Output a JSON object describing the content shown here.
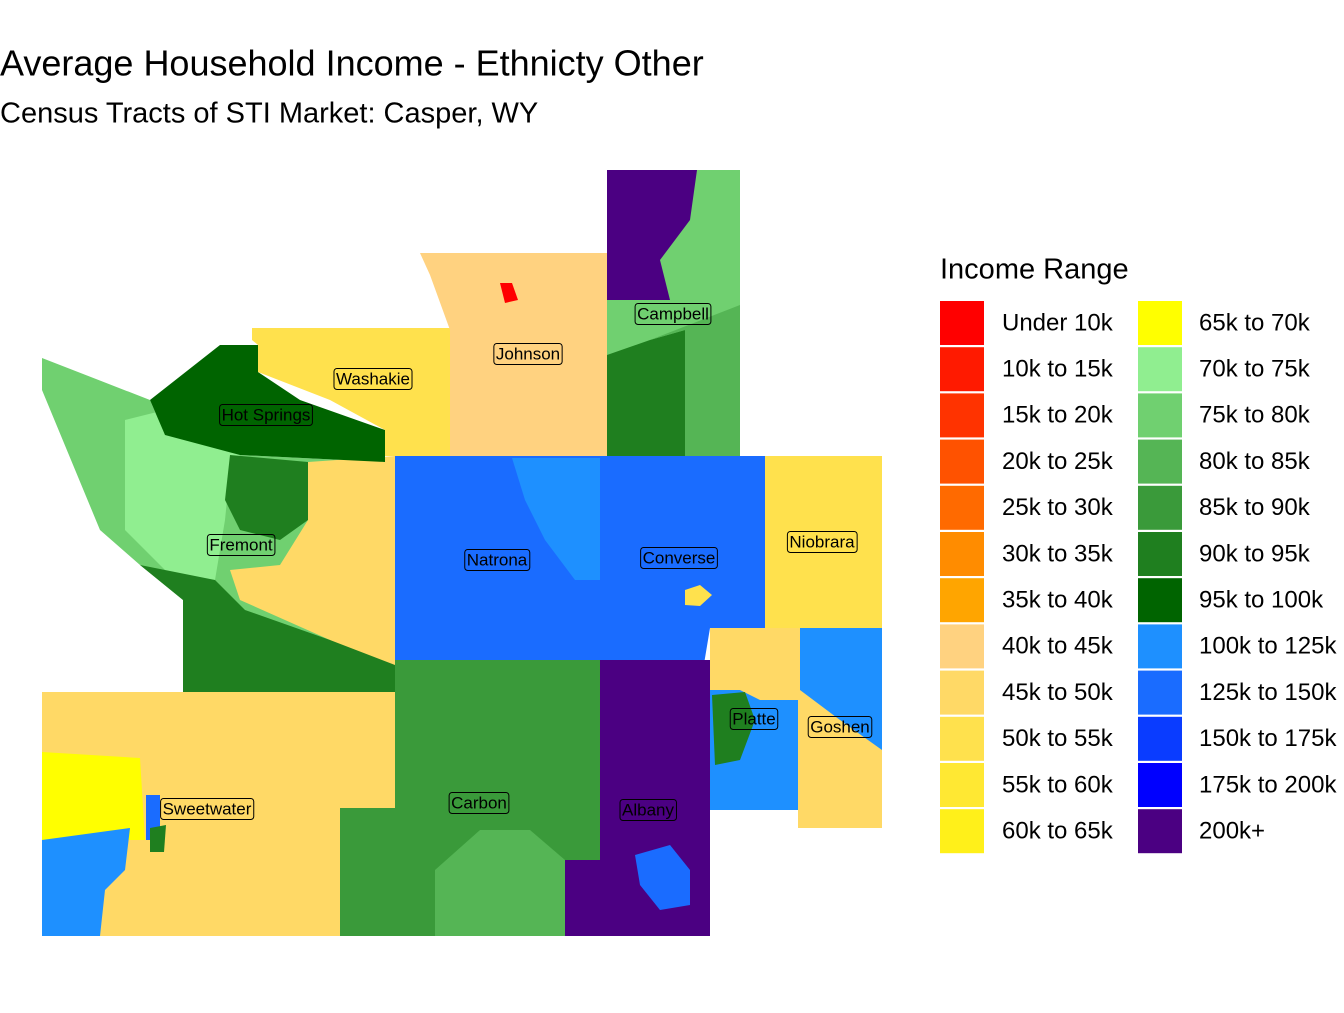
{
  "title": "Average Household Income - Ethnicty Other",
  "subtitle": "Census Tracts of STI Market: Casper, WY",
  "legend": {
    "title": "Income Range",
    "items": [
      {
        "label": "Under 10k",
        "color": "#ff0000"
      },
      {
        "label": "10k to 15k",
        "color": "#ff1a00"
      },
      {
        "label": "15k to 20k",
        "color": "#ff3300"
      },
      {
        "label": "20k to 25k",
        "color": "#ff5200"
      },
      {
        "label": "25k to 30k",
        "color": "#ff6a00"
      },
      {
        "label": "30k to 35k",
        "color": "#ff8c00"
      },
      {
        "label": "35k to 40k",
        "color": "#ffa500"
      },
      {
        "label": "40k to 45k",
        "color": "#ffd280"
      },
      {
        "label": "45k to 50k",
        "color": "#ffd966"
      },
      {
        "label": "50k to 55k",
        "color": "#ffe14d"
      },
      {
        "label": "55k to 60k",
        "color": "#ffe833"
      },
      {
        "label": "60k to 65k",
        "color": "#fff01a"
      },
      {
        "label": "65k to 70k",
        "color": "#ffff00"
      },
      {
        "label": "70k to 75k",
        "color": "#90ee90"
      },
      {
        "label": "75k to 80k",
        "color": "#70d070"
      },
      {
        "label": "80k to 85k",
        "color": "#55b555"
      },
      {
        "label": "85k to 90k",
        "color": "#3a9a3a"
      },
      {
        "label": "90k to 95k",
        "color": "#1f7f1f"
      },
      {
        "label": "95k to 100k",
        "color": "#006400"
      },
      {
        "label": "100k to 125k",
        "color": "#1e90ff"
      },
      {
        "label": "125k to 150k",
        "color": "#1a6cff"
      },
      {
        "label": "150k to 175k",
        "color": "#0a3cff"
      },
      {
        "label": "175k to 200k",
        "color": "#0000ff"
      },
      {
        "label": "200k+",
        "color": "#4b0082"
      }
    ]
  },
  "counties": [
    "Campbell",
    "Johnson",
    "Washakie",
    "Hot Springs",
    "Fremont",
    "Natrona",
    "Converse",
    "Niobrara",
    "Platte",
    "Goshen",
    "Carbon",
    "Albany",
    "Sweetwater"
  ]
}
